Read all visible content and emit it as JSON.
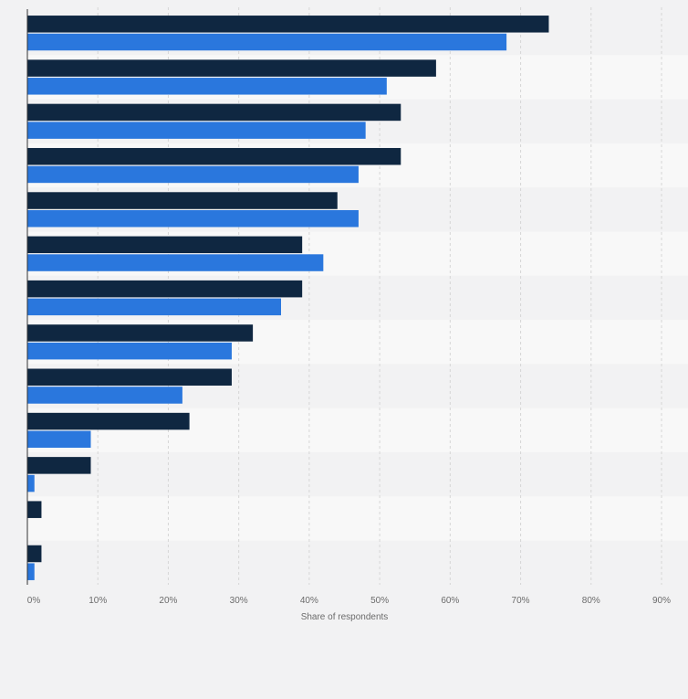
{
  "chart_data": {
    "type": "bar",
    "orientation": "horizontal",
    "xlabel": "Share of respondents",
    "xlim": [
      0,
      90
    ],
    "x_ticks": [
      0,
      10,
      20,
      30,
      40,
      50,
      60,
      70,
      80,
      90
    ],
    "x_tick_labels": [
      "0%",
      "10%",
      "20%",
      "30%",
      "40%",
      "50%",
      "60%",
      "70%",
      "80%",
      "90%"
    ],
    "grid": true,
    "categories_count": 13,
    "series": [
      {
        "color": "#0f2741",
        "values": [
          74,
          58,
          53,
          53,
          44,
          39,
          39,
          32,
          29,
          23,
          9,
          2,
          2
        ]
      },
      {
        "color": "#2a77dd",
        "values": [
          68,
          51,
          48,
          47,
          47,
          42,
          36,
          29,
          22,
          9,
          1,
          0,
          1
        ]
      }
    ]
  }
}
